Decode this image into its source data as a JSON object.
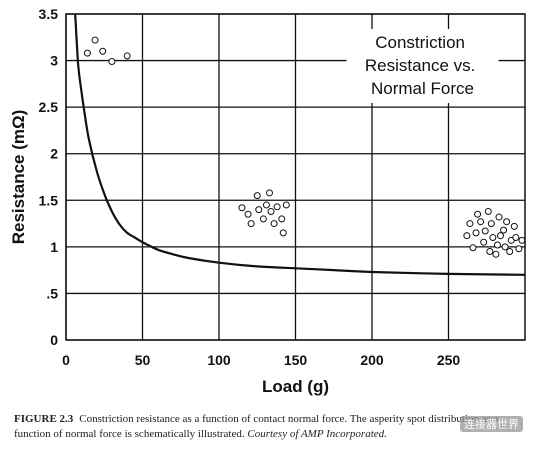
{
  "chart_data": {
    "type": "line",
    "title": "Constriction Resistance vs. Normal Force",
    "title_lines": [
      "Constriction",
      "Resistance vs.",
      "Normal Force"
    ],
    "xlabel": "Load (g)",
    "ylabel": "Resistance (mΩ)",
    "xlim": [
      0,
      300
    ],
    "ylim": [
      0,
      3.5
    ],
    "x_ticks": [
      "0",
      "50",
      "100",
      "150",
      "200",
      "250"
    ],
    "y_ticks": [
      "0",
      ".5",
      "1",
      "1.5",
      "2",
      "2.5",
      "3",
      "3.5"
    ],
    "grid": true,
    "series": [
      {
        "x": [
          6,
          8,
          10,
          12,
          15,
          20,
          25,
          30,
          35,
          40,
          45,
          50,
          60,
          70,
          80,
          100,
          125,
          150,
          175,
          200,
          250,
          300
        ],
        "y": [
          3.5,
          2.95,
          2.68,
          2.45,
          2.15,
          1.82,
          1.57,
          1.38,
          1.24,
          1.15,
          1.1,
          1.05,
          0.97,
          0.92,
          0.88,
          0.83,
          0.79,
          0.77,
          0.75,
          0.73,
          0.71,
          0.7
        ]
      }
    ],
    "annotations": [
      {
        "kind": "asperity-spots",
        "points": [
          [
            14,
            3.08
          ],
          [
            19,
            3.22
          ],
          [
            24,
            3.1
          ],
          [
            30,
            2.99
          ],
          [
            40,
            3.05
          ]
        ]
      },
      {
        "kind": "asperity-spots",
        "points": [
          [
            115,
            1.42
          ],
          [
            119,
            1.35
          ],
          [
            121,
            1.25
          ],
          [
            125,
            1.55
          ],
          [
            126,
            1.4
          ],
          [
            129,
            1.3
          ],
          [
            131,
            1.45
          ],
          [
            133,
            1.58
          ],
          [
            134,
            1.38
          ],
          [
            136,
            1.25
          ],
          [
            138,
            1.43
          ],
          [
            141,
            1.3
          ],
          [
            142,
            1.15
          ],
          [
            144,
            1.45
          ]
        ]
      },
      {
        "kind": "asperity-spots",
        "points": [
          [
            262,
            1.12
          ],
          [
            264,
            1.25
          ],
          [
            266,
            0.99
          ],
          [
            268,
            1.15
          ],
          [
            269,
            1.35
          ],
          [
            271,
            1.27
          ],
          [
            273,
            1.05
          ],
          [
            274,
            1.17
          ],
          [
            276,
            1.38
          ],
          [
            277,
            0.95
          ],
          [
            278,
            1.25
          ],
          [
            279,
            1.1
          ],
          [
            281,
            0.92
          ],
          [
            282,
            1.02
          ],
          [
            283,
            1.32
          ],
          [
            284,
            1.12
          ],
          [
            286,
            1.18
          ],
          [
            287,
            1.0
          ],
          [
            288,
            1.27
          ],
          [
            290,
            0.95
          ],
          [
            291,
            1.07
          ],
          [
            293,
            1.22
          ],
          [
            294,
            1.1
          ],
          [
            296,
            0.98
          ],
          [
            298,
            1.07
          ]
        ]
      }
    ]
  },
  "caption": {
    "figure_label": "FIGURE 2.3",
    "text": "Constriction resistance as a function of contact normal force. The asperity spot distribution as a function of normal force is schematically illustrated.",
    "courtesy": "Courtesy of AMP Incorporated."
  },
  "watermark": "连接器世界"
}
